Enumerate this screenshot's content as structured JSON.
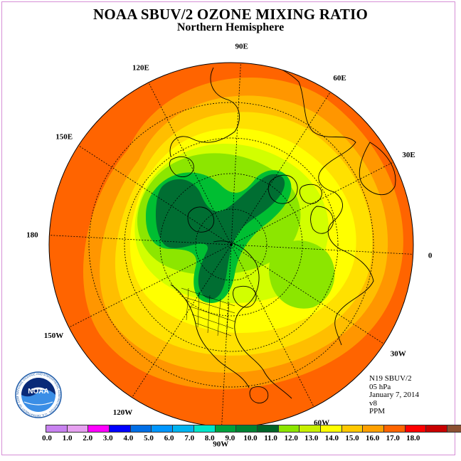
{
  "header": {
    "title": "NOAA SBUV/2 OZONE MIXING RATIO",
    "subtitle": "Northern Hemisphere"
  },
  "map": {
    "projection": "north-polar-stereographic",
    "meridian_labels": [
      "90E",
      "60E",
      "30E",
      "0",
      "30W",
      "60W",
      "90W",
      "120W",
      "150W",
      "180",
      "150E",
      "120E"
    ],
    "colors": {
      "outer": "#ff6400",
      "band1": "#ff9600",
      "band2": "#ffbe00",
      "band3": "#ffe100",
      "band4": "#ffff00",
      "band5": "#d2ff00",
      "band6": "#8ce600",
      "core": "#00be32",
      "center": "#006e32",
      "land": "#000000",
      "grid": "#000000"
    }
  },
  "info": {
    "satellite": "N19 SBUV/2",
    "pressure": "05 hPa",
    "date": "January 7, 2014",
    "version": "v8",
    "units": "PPM"
  },
  "logo": {
    "text": "NOAA",
    "ring_text": "NATIONAL OCEANIC AND ATMOSPHERIC ADMINISTRATION · U.S. DEPARTMENT OF COMMERCE"
  },
  "legend": {
    "colors": [
      "#c882f0",
      "#e6a0f0",
      "#ff00ff",
      "#0000ff",
      "#006ee6",
      "#0096ff",
      "#00b4f0",
      "#00e6c8",
      "#00a03c",
      "#008232",
      "#006428",
      "#8ce600",
      "#c8f000",
      "#ffff00",
      "#ffc800",
      "#ffa000",
      "#ff6400",
      "#ff0000",
      "#c80000",
      "#8c5032"
    ],
    "ticks": [
      "0.0",
      "1.0",
      "2.0",
      "3.0",
      "4.0",
      "5.0",
      "6.0",
      "7.0",
      "8.0",
      "9.0",
      "10.0",
      "11.0",
      "12.0",
      "13.0",
      "14.0",
      "15.0",
      "16.0",
      "17.0",
      "18.0"
    ]
  }
}
